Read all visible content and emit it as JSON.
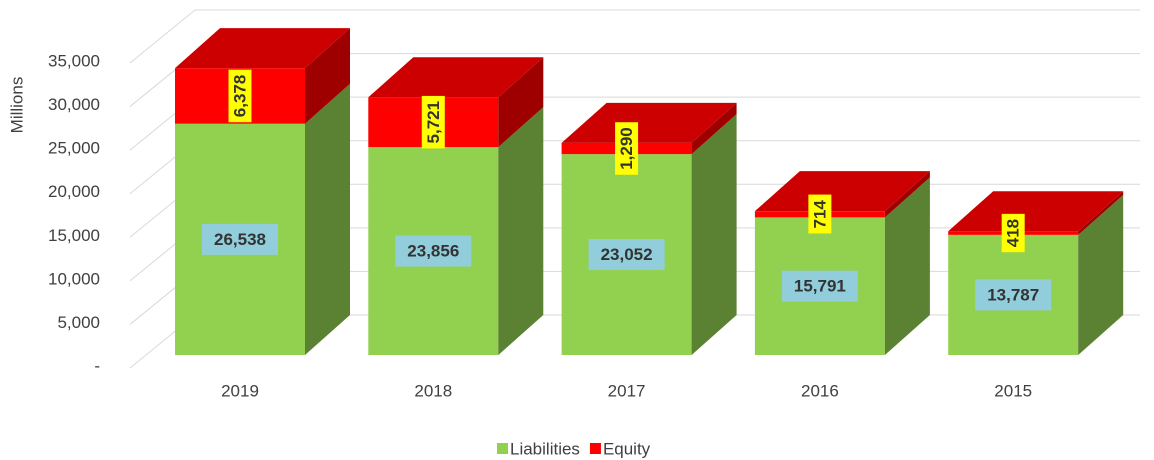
{
  "chart_data": {
    "type": "bar3d_stacked",
    "y_axis_label": "Millions",
    "categories": [
      "2019",
      "2018",
      "2017",
      "2016",
      "2015"
    ],
    "series": [
      {
        "name": "Liabilities",
        "color": "#92d050",
        "values": [
          26538,
          23856,
          23052,
          15791,
          13787
        ],
        "value_labels": [
          "26,538",
          "23,856",
          "23,052",
          "15,791",
          "13,787"
        ]
      },
      {
        "name": "Equity",
        "color": "#ff0000",
        "values": [
          6378,
          5721,
          1290,
          714,
          418
        ],
        "value_labels": [
          "6,378",
          "5,721",
          "1,290",
          "714",
          "418"
        ]
      }
    ],
    "ylim": [
      0,
      35000
    ],
    "yticks": [
      {
        "value": 0,
        "label": "-"
      },
      {
        "value": 5000,
        "label": "5,000"
      },
      {
        "value": 10000,
        "label": "10,000"
      },
      {
        "value": 15000,
        "label": "15,000"
      },
      {
        "value": 20000,
        "label": "20,000"
      },
      {
        "value": 25000,
        "label": "25,000"
      },
      {
        "value": 30000,
        "label": "30,000"
      },
      {
        "value": 35000,
        "label": "35,000"
      }
    ],
    "grid": true,
    "legend": "bottom"
  }
}
